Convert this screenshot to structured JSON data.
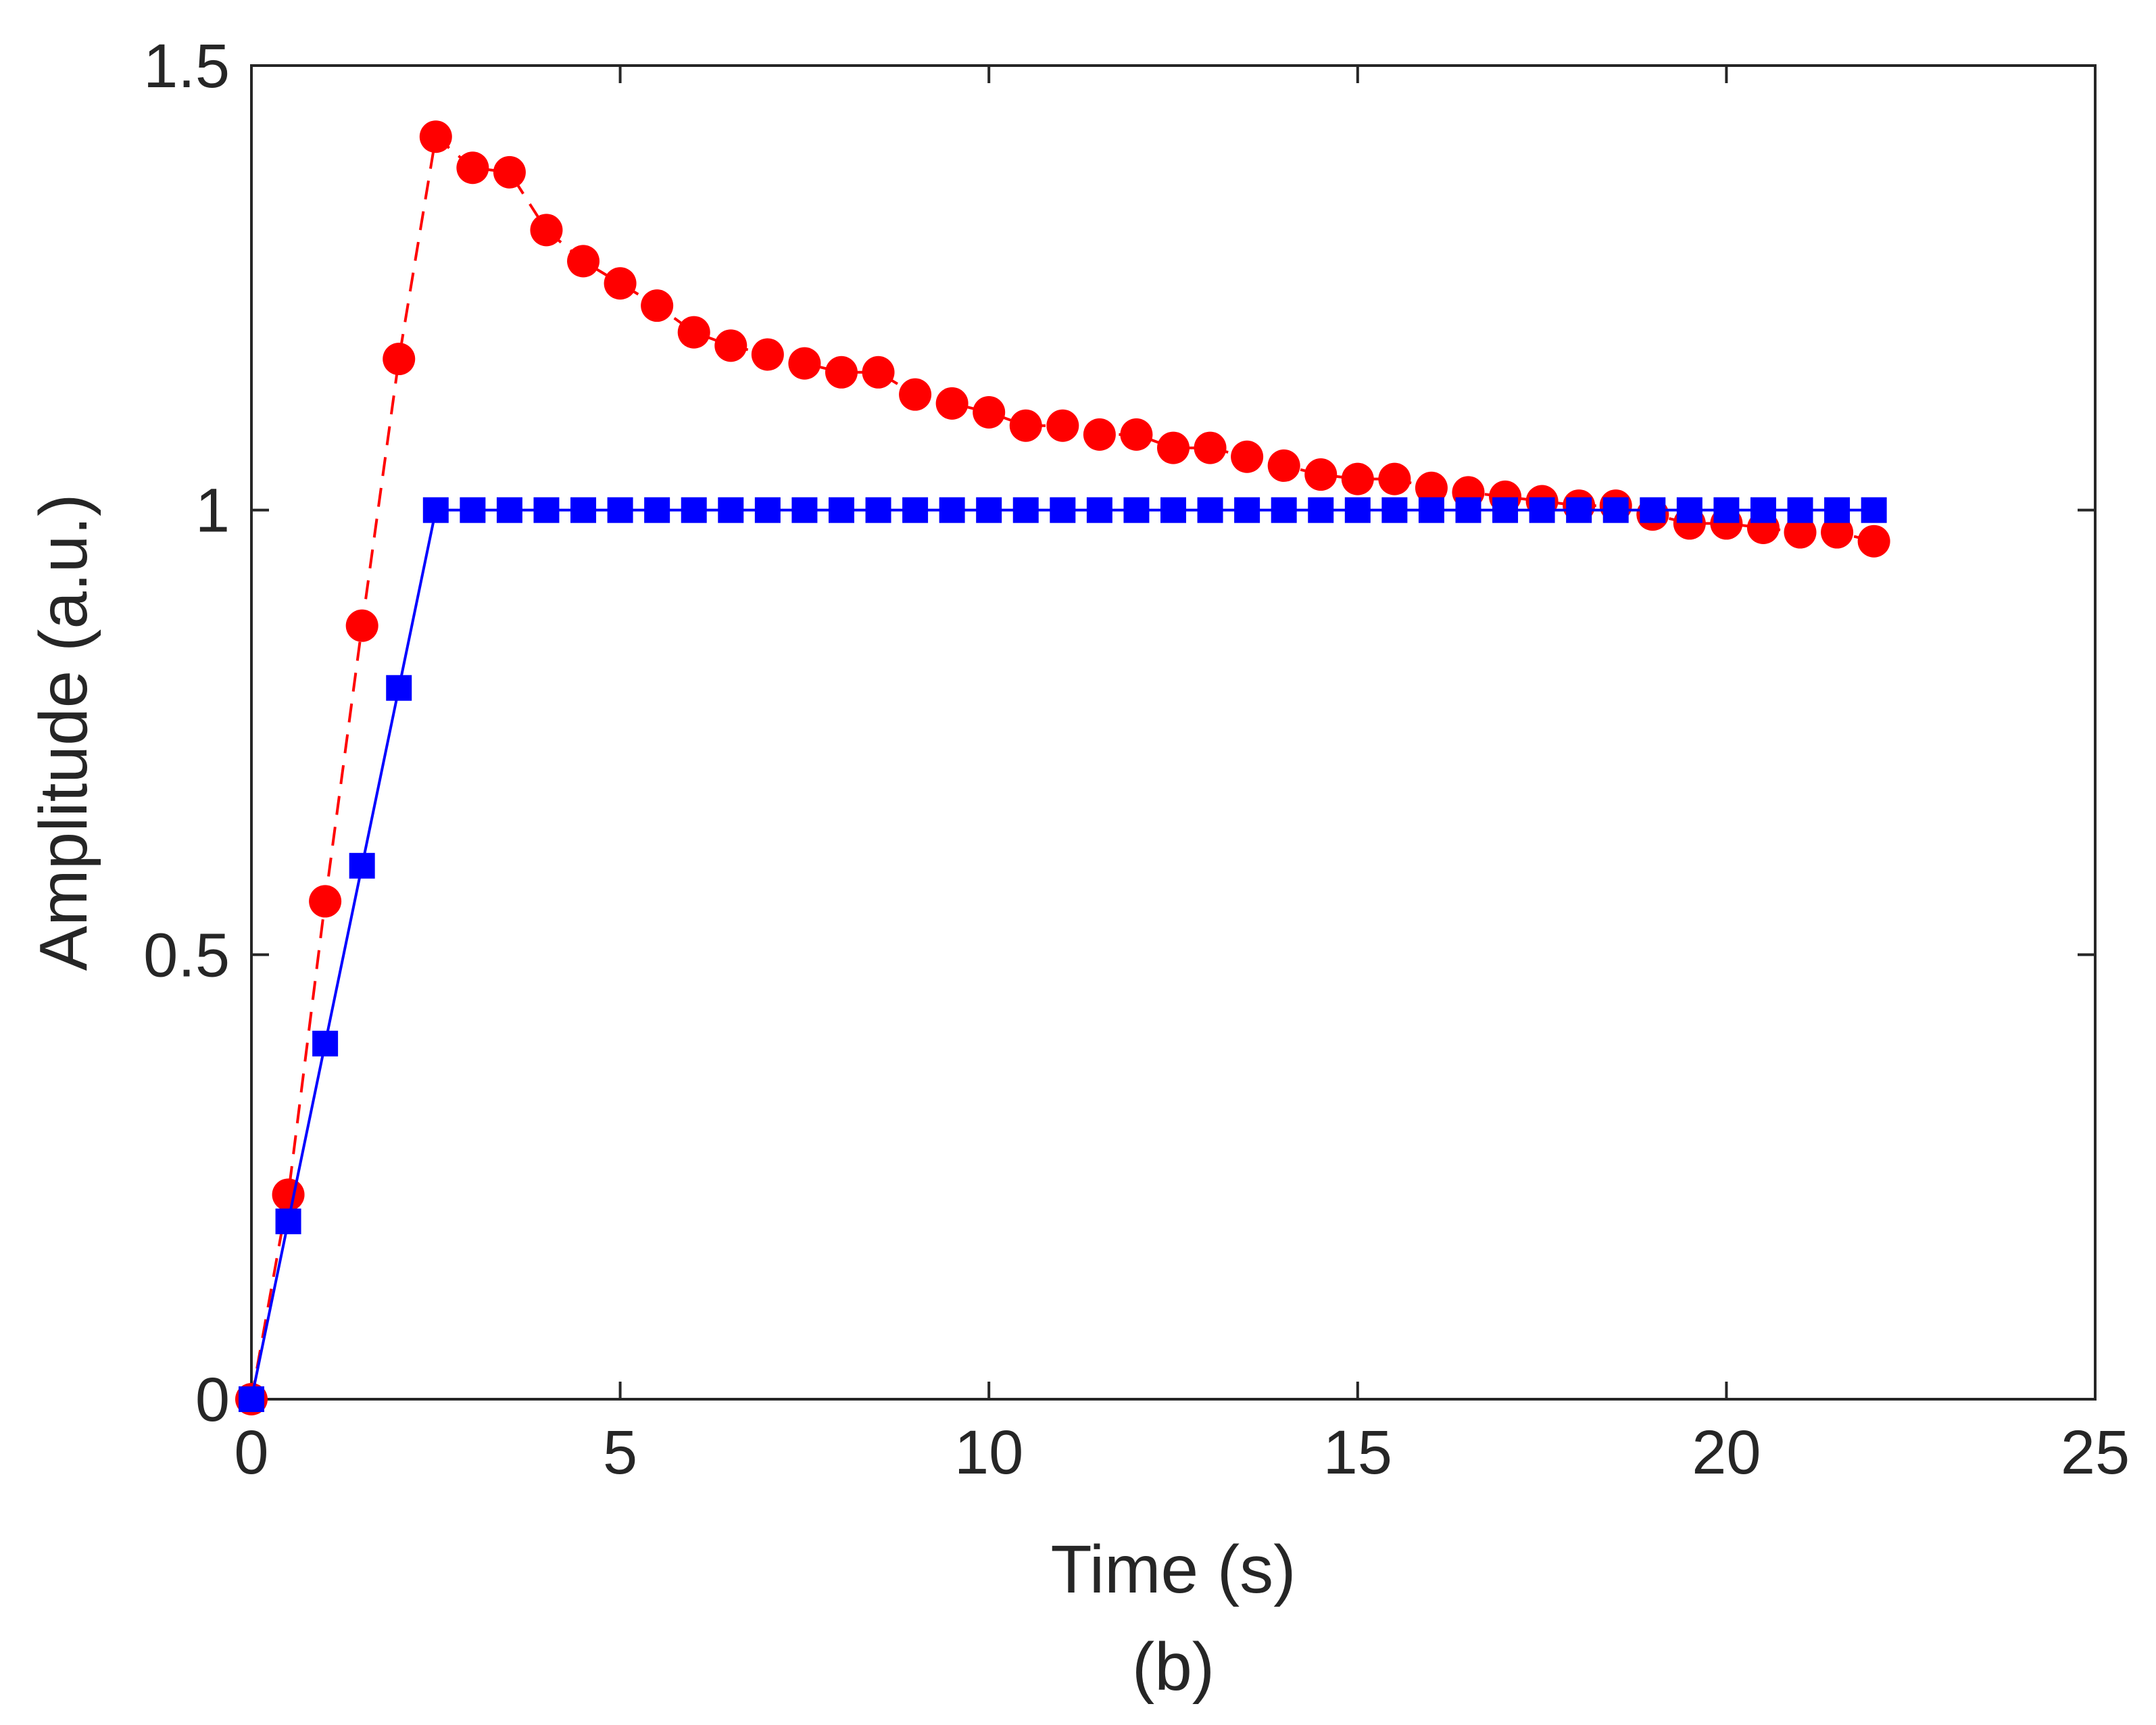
{
  "chart_data": {
    "type": "line",
    "title": "",
    "xlabel": "Time (s)",
    "ylabel": "Amplitude (a.u.)",
    "caption": "(b)",
    "xlim": [
      0,
      25
    ],
    "ylim": [
      0,
      1.5
    ],
    "xticks": [
      0,
      5,
      10,
      15,
      20,
      25
    ],
    "xtick_labels": [
      "0",
      "5",
      "10",
      "15",
      "20",
      "25"
    ],
    "yticks": [
      0,
      0.5,
      1,
      1.5
    ],
    "ytick_labels": [
      "0",
      "0.5",
      "1",
      "1.5"
    ],
    "grid": false,
    "series": [
      {
        "name": "red dashed circles",
        "color": "#ff0000",
        "line_style": "dashed",
        "marker": "circle",
        "x": [
          0,
          0.5,
          1,
          1.5,
          2,
          2.5,
          3,
          3.5,
          4,
          4.5,
          5,
          5.5,
          6,
          6.5,
          7,
          7.5,
          8,
          8.5,
          9,
          9.5,
          10,
          10.5,
          11,
          11.5,
          12,
          12.5,
          13,
          13.5,
          14,
          14.5,
          15,
          15.5,
          16,
          16.5,
          17,
          17.5,
          18,
          18.5,
          19,
          19.5,
          20,
          20.5,
          21,
          21.5,
          22
        ],
        "y": [
          0,
          0.23,
          0.56,
          0.87,
          1.17,
          1.42,
          1.385,
          1.38,
          1.315,
          1.28,
          1.255,
          1.23,
          1.2,
          1.185,
          1.175,
          1.165,
          1.155,
          1.155,
          1.13,
          1.12,
          1.11,
          1.095,
          1.095,
          1.085,
          1.085,
          1.07,
          1.07,
          1.06,
          1.05,
          1.04,
          1.035,
          1.035,
          1.025,
          1.02,
          1.015,
          1.01,
          1.005,
          1.005,
          0.995,
          0.985,
          0.985,
          0.98,
          0.975,
          0.975,
          0.965
        ]
      },
      {
        "name": "blue solid squares",
        "color": "#0000ff",
        "line_style": "solid",
        "marker": "square",
        "x": [
          0,
          0.5,
          1,
          1.5,
          2,
          2.5,
          3,
          3.5,
          4,
          4.5,
          5,
          5.5,
          6,
          6.5,
          7,
          7.5,
          8,
          8.5,
          9,
          9.5,
          10,
          10.5,
          11,
          11.5,
          12,
          12.5,
          13,
          13.5,
          14,
          14.5,
          15,
          15.5,
          16,
          16.5,
          17,
          17.5,
          18,
          18.5,
          19,
          19.5,
          20,
          20.5,
          21,
          21.5,
          22
        ],
        "y": [
          0,
          0.2,
          0.4,
          0.6,
          0.8,
          1,
          1,
          1,
          1,
          1,
          1,
          1,
          1,
          1,
          1,
          1,
          1,
          1,
          1,
          1,
          1,
          1,
          1,
          1,
          1,
          1,
          1,
          1,
          1,
          1,
          1,
          1,
          1,
          1,
          1,
          1,
          1,
          1,
          1,
          1,
          1,
          1,
          1,
          1,
          1
        ]
      }
    ]
  }
}
